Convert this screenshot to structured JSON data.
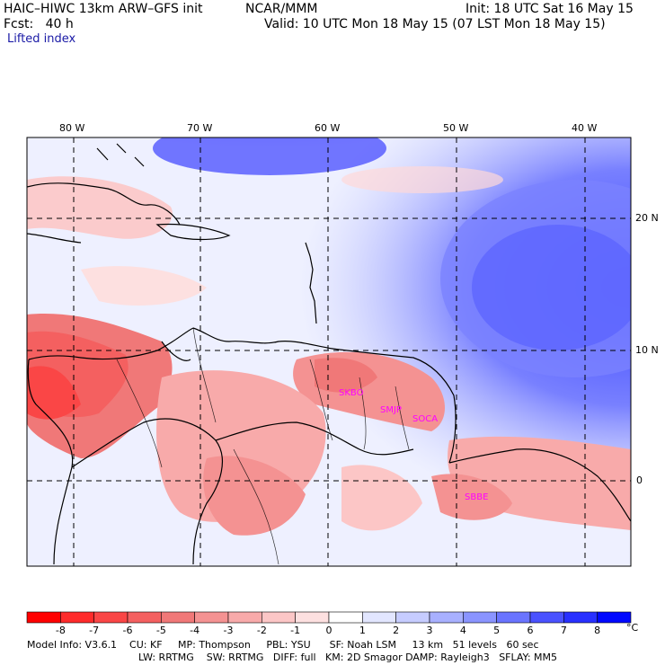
{
  "header": {
    "model_title": "HAIC–HIWC 13km ARW–GFS init",
    "org": "NCAR/MMM",
    "init": "Init: 18 UTC Sat 16 May 15",
    "fcst": "Fcst:   40 h",
    "valid": "Valid: 10 UTC Mon 18 May 15 (07 LST Mon 18 May 15)",
    "field": "Lifted index"
  },
  "map": {
    "lon_labels": [
      "80 W",
      "70 W",
      "60 W",
      "50 W",
      "40 W"
    ],
    "lat_labels": [
      "20 N",
      "10 N",
      "0"
    ],
    "stations": [
      "SKBO",
      "SMJP",
      "SOCA",
      "SBBE"
    ],
    "station_color": "#ff00ff"
  },
  "colorbar": {
    "labels": [
      "-8",
      "-7",
      "-6",
      "-5",
      "-4",
      "-3",
      "-2",
      "-1",
      "0",
      "1",
      "2",
      "3",
      "4",
      "5",
      "6",
      "7",
      "8"
    ],
    "unit": "°C",
    "colors": [
      "#ff0000",
      "#ff2b2b",
      "#fa4646",
      "#f46060",
      "#f07878",
      "#f49292",
      "#f8aaaa",
      "#fcc6c6",
      "#fde0e0",
      "#ffffff",
      "#e2e6ff",
      "#c6ccff",
      "#a8b0ff",
      "#8a94ff",
      "#6a74ff",
      "#4a52ff",
      "#2830ff",
      "#0008ff"
    ]
  },
  "footer": {
    "line1": "Model Info: V3.6.1    CU: KF     MP: Thompson     PBL: YSU      SF: Noah LSM     13 km   51 levels   60 sec",
    "line2": "LW: RRTMG    SW: RRTMG   DIFF: full   KM: 2D Smagor DAMP: Rayleigh3   SFLAY: MM5"
  }
}
